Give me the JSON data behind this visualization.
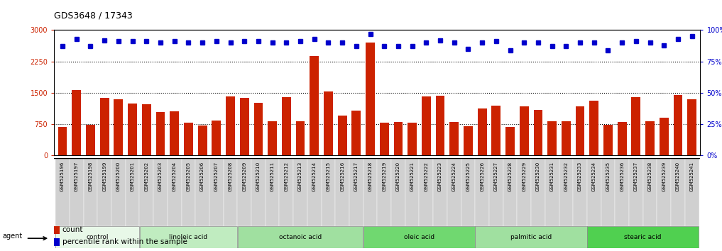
{
  "title": "GDS3648 / 17343",
  "samples": [
    "GSM525196",
    "GSM525197",
    "GSM525198",
    "GSM525199",
    "GSM525200",
    "GSM525201",
    "GSM525202",
    "GSM525203",
    "GSM525204",
    "GSM525205",
    "GSM525206",
    "GSM525207",
    "GSM525208",
    "GSM525209",
    "GSM525210",
    "GSM525211",
    "GSM525212",
    "GSM525213",
    "GSM525214",
    "GSM525215",
    "GSM525216",
    "GSM525217",
    "GSM525218",
    "GSM525219",
    "GSM525220",
    "GSM525221",
    "GSM525222",
    "GSM525223",
    "GSM525224",
    "GSM525225",
    "GSM525226",
    "GSM525227",
    "GSM525228",
    "GSM525229",
    "GSM525230",
    "GSM525231",
    "GSM525232",
    "GSM525233",
    "GSM525234",
    "GSM525235",
    "GSM525236",
    "GSM525237",
    "GSM525238",
    "GSM525239",
    "GSM525240",
    "GSM525241"
  ],
  "counts": [
    680,
    1560,
    740,
    1380,
    1340,
    1250,
    1230,
    1050,
    1060,
    790,
    720,
    840,
    1420,
    1380,
    1260,
    820,
    1400,
    820,
    2380,
    1540,
    960,
    1080,
    2700,
    790,
    800,
    780,
    1420,
    1440,
    800,
    700,
    1130,
    1190,
    690,
    1180,
    1090,
    820,
    820,
    1180,
    1310,
    740,
    810,
    1390,
    820,
    900,
    1450,
    1350
  ],
  "percentile_ranks": [
    87,
    93,
    87,
    92,
    91,
    91,
    91,
    90,
    91,
    90,
    90,
    91,
    90,
    91,
    91,
    90,
    90,
    91,
    93,
    90,
    90,
    87,
    97,
    87,
    87,
    87,
    90,
    92,
    90,
    85,
    90,
    91,
    84,
    90,
    90,
    87,
    87,
    90,
    90,
    84,
    90,
    91,
    90,
    88,
    93,
    95
  ],
  "groups": [
    {
      "label": "control",
      "start": 0,
      "end": 6,
      "color": "#e8f8e8"
    },
    {
      "label": "linoleic acid",
      "start": 6,
      "end": 13,
      "color": "#c0ecc0"
    },
    {
      "label": "octanoic acid",
      "start": 13,
      "end": 22,
      "color": "#a0e0a0"
    },
    {
      "label": "oleic acid",
      "start": 22,
      "end": 30,
      "color": "#70d870"
    },
    {
      "label": "palmitic acid",
      "start": 30,
      "end": 38,
      "color": "#a0e0a0"
    },
    {
      "label": "stearic acid",
      "start": 38,
      "end": 46,
      "color": "#50d050"
    }
  ],
  "bar_color": "#cc2200",
  "dot_color": "#0000cc",
  "left_ylim": [
    0,
    3000
  ],
  "right_ylim": [
    0,
    100
  ],
  "left_yticks": [
    0,
    750,
    1500,
    2250,
    3000
  ],
  "right_yticks": [
    0,
    25,
    50,
    75,
    100
  ],
  "right_yticklabels": [
    "0%",
    "25%",
    "50%",
    "75%",
    "100%"
  ],
  "grid_vals": [
    750,
    1500,
    2250
  ],
  "plot_bg_color": "#ffffff",
  "xtick_bg": "#d8d8d8"
}
